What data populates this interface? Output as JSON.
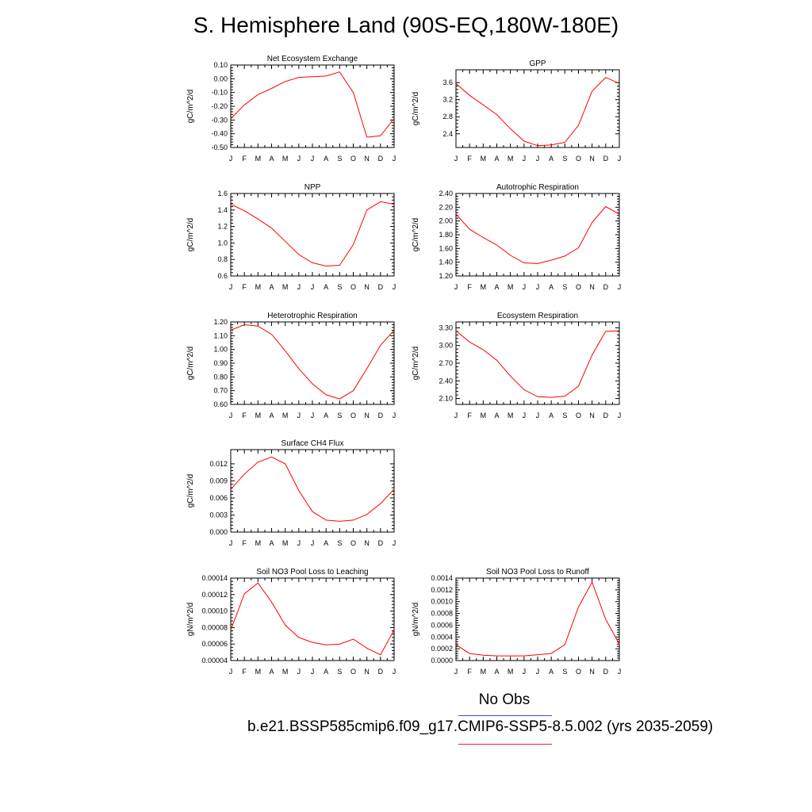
{
  "page": {
    "title": "S. Hemisphere Land (90S-EQ,180W-180E)",
    "legend": {
      "obs_label": "No Obs",
      "obs_color": "#3b4fd8",
      "case_label": "b.e21.BSSP585cmip6.f09_g17.CMIP6-SSP5-8.5.002 (yrs 2035-2059)",
      "case_color": "#e8202a"
    }
  },
  "chart_data": [
    {
      "type": "line",
      "title": "Net Ecosystem Exchange",
      "ylabel": "gC/m^2/d",
      "x": [
        "J",
        "F",
        "M",
        "A",
        "M",
        "J",
        "J",
        "A",
        "S",
        "O",
        "N",
        "D",
        "J"
      ],
      "ylim": [
        -0.5,
        0.1
      ],
      "yticks": [
        "0.10",
        "0.00",
        "-0.10",
        "-0.20",
        "-0.30",
        "-0.40",
        "-0.50"
      ],
      "ytick_values": [
        0.1,
        0.0,
        -0.1,
        -0.2,
        -0.3,
        -0.4,
        -0.5
      ],
      "series": [
        {
          "values": [
            -0.29,
            -0.19,
            -0.115,
            -0.07,
            -0.02,
            0.01,
            0.015,
            0.02,
            0.05,
            -0.1,
            -0.425,
            -0.415,
            -0.29
          ],
          "color": "#ff0000"
        }
      ]
    },
    {
      "type": "line",
      "title": "GPP",
      "ylabel": "gC/m^2/d",
      "x": [
        "J",
        "F",
        "M",
        "A",
        "M",
        "J",
        "J",
        "A",
        "S",
        "O",
        "N",
        "D",
        "J"
      ],
      "ylim": [
        2.08,
        3.9
      ],
      "yticks": [
        "3.6",
        "3.2",
        "2.8",
        "2.4"
      ],
      "ytick_values": [
        3.6,
        3.2,
        2.8,
        2.4
      ],
      "series": [
        {
          "values": [
            3.58,
            3.3,
            3.08,
            2.85,
            2.52,
            2.23,
            2.12,
            2.14,
            2.2,
            2.6,
            3.4,
            3.72,
            3.58
          ],
          "color": "#ff0000"
        }
      ]
    },
    {
      "type": "line",
      "title": "NPP",
      "ylabel": "gC/m^2/d",
      "x": [
        "J",
        "F",
        "M",
        "A",
        "M",
        "J",
        "J",
        "A",
        "S",
        "O",
        "N",
        "D",
        "J"
      ],
      "ylim": [
        0.6,
        1.6
      ],
      "yticks": [
        "1.6",
        "1.4",
        "1.2",
        "1.0",
        "0.8",
        "0.6"
      ],
      "ytick_values": [
        1.6,
        1.4,
        1.2,
        1.0,
        0.8,
        0.6
      ],
      "series": [
        {
          "values": [
            1.47,
            1.39,
            1.29,
            1.18,
            1.02,
            0.86,
            0.76,
            0.72,
            0.73,
            0.98,
            1.4,
            1.5,
            1.47
          ],
          "color": "#ff0000"
        }
      ]
    },
    {
      "type": "line",
      "title": "Autotrophic Respiration",
      "ylabel": "gC/m^2/d",
      "x": [
        "J",
        "F",
        "M",
        "A",
        "M",
        "J",
        "J",
        "A",
        "S",
        "O",
        "N",
        "D",
        "J"
      ],
      "ylim": [
        1.2,
        2.4
      ],
      "yticks": [
        "2.40",
        "2.20",
        "2.00",
        "1.80",
        "1.60",
        "1.40",
        "1.20"
      ],
      "ytick_values": [
        2.4,
        2.2,
        2.0,
        1.8,
        1.6,
        1.4,
        1.2
      ],
      "series": [
        {
          "values": [
            2.1,
            1.88,
            1.76,
            1.65,
            1.5,
            1.39,
            1.38,
            1.43,
            1.49,
            1.61,
            1.98,
            2.21,
            2.1
          ],
          "color": "#ff0000"
        }
      ]
    },
    {
      "type": "line",
      "title": "Heterotrophic Respiration",
      "ylabel": "gC/m^2/d",
      "x": [
        "J",
        "F",
        "M",
        "A",
        "M",
        "J",
        "J",
        "A",
        "S",
        "O",
        "N",
        "D",
        "J"
      ],
      "ylim": [
        0.6,
        1.2
      ],
      "yticks": [
        "1.20",
        "1.10",
        "1.00",
        "0.90",
        "0.80",
        "0.70",
        "0.60"
      ],
      "ytick_values": [
        1.2,
        1.1,
        1.0,
        0.9,
        0.8,
        0.7,
        0.6
      ],
      "series": [
        {
          "values": [
            1.14,
            1.18,
            1.17,
            1.11,
            0.99,
            0.86,
            0.75,
            0.67,
            0.64,
            0.7,
            0.86,
            1.03,
            1.14
          ],
          "color": "#ff0000"
        }
      ]
    },
    {
      "type": "line",
      "title": "Ecosystem Respiration",
      "ylabel": "gC/m^2/d",
      "x": [
        "J",
        "F",
        "M",
        "A",
        "M",
        "J",
        "J",
        "A",
        "S",
        "O",
        "N",
        "D",
        "J"
      ],
      "ylim": [
        2.0,
        3.4
      ],
      "yticks": [
        "3.30",
        "3.00",
        "2.70",
        "2.40",
        "2.10"
      ],
      "ytick_values": [
        3.3,
        3.0,
        2.7,
        2.4,
        2.1
      ],
      "series": [
        {
          "values": [
            3.25,
            3.06,
            2.93,
            2.75,
            2.48,
            2.25,
            2.13,
            2.12,
            2.14,
            2.31,
            2.84,
            3.24,
            3.25
          ],
          "color": "#ff0000"
        }
      ]
    },
    {
      "type": "line",
      "title": "Surface CH4 Flux",
      "ylabel": "gC/m^2/d",
      "x": [
        "J",
        "F",
        "M",
        "A",
        "M",
        "J",
        "J",
        "A",
        "S",
        "O",
        "N",
        "D",
        "J"
      ],
      "ylim": [
        0.0,
        0.0145
      ],
      "yticks": [
        "0.012",
        "0.009",
        "0.006",
        "0.003",
        "0.000"
      ],
      "ytick_values": [
        0.012,
        0.009,
        0.006,
        0.003,
        0.0
      ],
      "series": [
        {
          "values": [
            0.0075,
            0.0102,
            0.0123,
            0.0132,
            0.012,
            0.0073,
            0.0036,
            0.0021,
            0.0019,
            0.0021,
            0.0031,
            0.005,
            0.0075
          ],
          "color": "#ff0000"
        }
      ]
    },
    {
      "type": "line",
      "title": "Soil NO3 Pool Loss to Leaching",
      "ylabel": "gN/m^2/d",
      "x": [
        "J",
        "F",
        "M",
        "A",
        "M",
        "J",
        "J",
        "A",
        "S",
        "O",
        "N",
        "D",
        "J"
      ],
      "ylim": [
        4e-05,
        0.00014
      ],
      "yticks": [
        "0.00014",
        "0.00012",
        "0.00010",
        "0.00008",
        "0.00006",
        "0.00004"
      ],
      "ytick_values": [
        0.00014,
        0.00012,
        0.0001,
        8e-05,
        6e-05,
        4e-05
      ],
      "series": [
        {
          "values": [
            7.7e-05,
            0.000121,
            0.000134,
            0.000111,
            8.3e-05,
            6.8e-05,
            6.2e-05,
            5.9e-05,
            6e-05,
            6.6e-05,
            5.5e-05,
            4.7e-05,
            7.7e-05
          ],
          "color": "#ff0000"
        }
      ]
    },
    {
      "type": "line",
      "title": "Soil NO3 Pool Loss to Runoff",
      "ylabel": "gN/m^2/d",
      "x": [
        "J",
        "F",
        "M",
        "A",
        "M",
        "J",
        "J",
        "A",
        "S",
        "O",
        "N",
        "D",
        "J"
      ],
      "ylim": [
        0.0,
        0.0014
      ],
      "yticks": [
        "0.0014",
        "0.0012",
        "0.0010",
        "0.0008",
        "0.0006",
        "0.0004",
        "0.0002",
        "0.0000"
      ],
      "ytick_values": [
        0.0014,
        0.0012,
        0.001,
        0.0008,
        0.0006,
        0.0004,
        0.0002,
        0.0
      ],
      "series": [
        {
          "values": [
            0.00027,
            0.00012,
            9e-05,
            8e-05,
            8e-05,
            8e-05,
            0.0001,
            0.00012,
            0.00027,
            0.00091,
            0.00133,
            0.0007,
            0.00028
          ],
          "color": "#ff0000"
        }
      ]
    }
  ]
}
